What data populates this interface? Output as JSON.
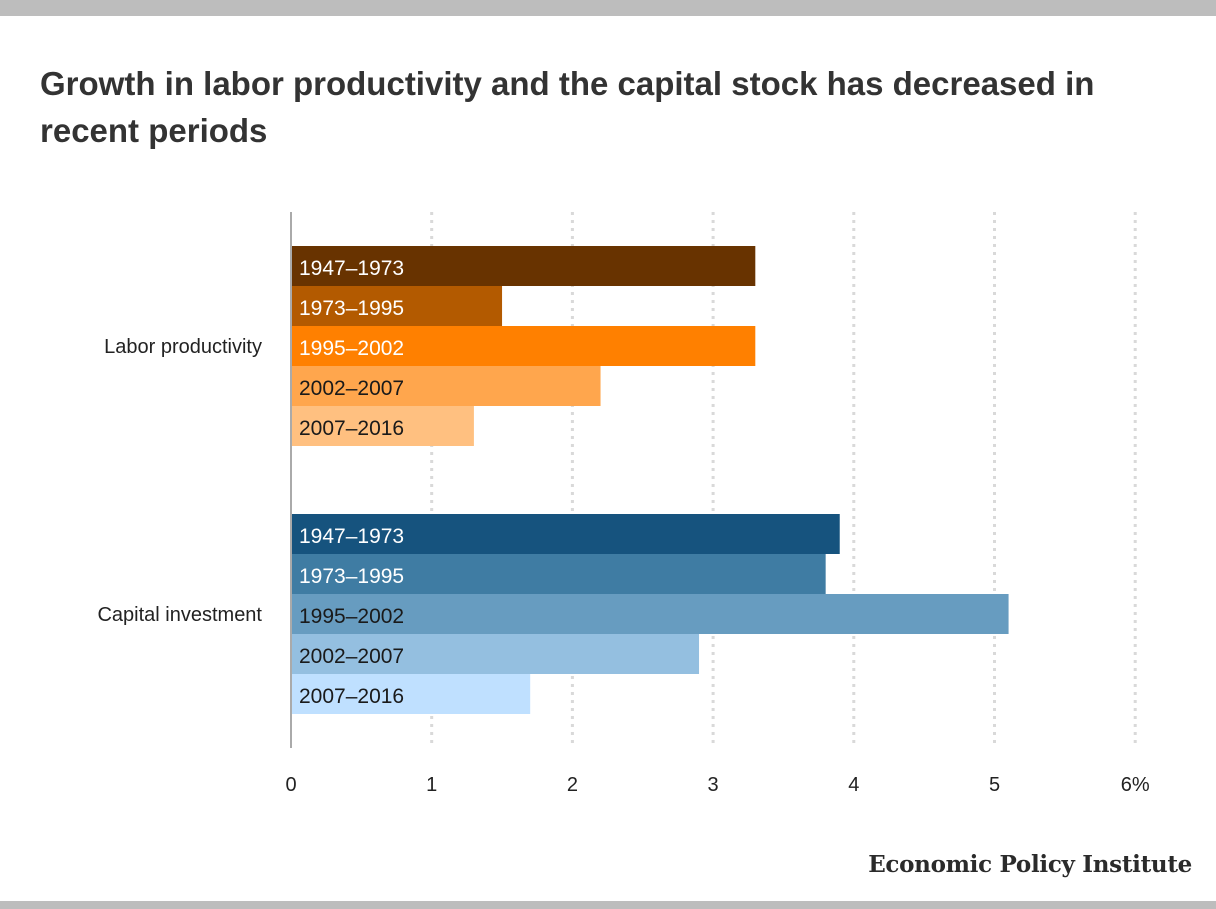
{
  "title": "Growth in labor productivity and the capital stock has decreased in recent periods",
  "source": "Economic Policy Institute",
  "chart_data": {
    "type": "bar",
    "orientation": "horizontal",
    "title": "Growth in labor productivity and the capital stock has decreased in recent periods",
    "xlim": [
      0,
      6
    ],
    "x_ticks": [
      "0",
      "1",
      "2",
      "3",
      "4",
      "5",
      "6%"
    ],
    "grid": true,
    "groups": [
      {
        "name": "Labor productivity",
        "bars": [
          {
            "label": "1947–1973",
            "value": 3.3,
            "color": "#683300",
            "text_color": "#ffffff"
          },
          {
            "label": "1973–1995",
            "value": 1.5,
            "color": "#b35a00",
            "text_color": "#ffffff"
          },
          {
            "label": "1995–2002",
            "value": 3.3,
            "color": "#ff8000",
            "text_color": "#ffffff"
          },
          {
            "label": "2002–2007",
            "value": 2.2,
            "color": "#ffa64d",
            "text_color": "#1a1a1a"
          },
          {
            "label": "2007–2016",
            "value": 1.3,
            "color": "#ffc080",
            "text_color": "#1a1a1a"
          }
        ]
      },
      {
        "name": "Capital investment",
        "bars": [
          {
            "label": "1947–1973",
            "value": 3.9,
            "color": "#16537e",
            "text_color": "#ffffff"
          },
          {
            "label": "1973–1995",
            "value": 3.8,
            "color": "#3f7ca3",
            "text_color": "#ffffff"
          },
          {
            "label": "1995–2002",
            "value": 5.1,
            "color": "#679cc0",
            "text_color": "#1a1a1a"
          },
          {
            "label": "2002–2007",
            "value": 2.9,
            "color": "#94bfe0",
            "text_color": "#1a1a1a"
          },
          {
            "label": "2007–2016",
            "value": 1.7,
            "color": "#bfe0ff",
            "text_color": "#1a1a1a"
          }
        ]
      }
    ]
  }
}
